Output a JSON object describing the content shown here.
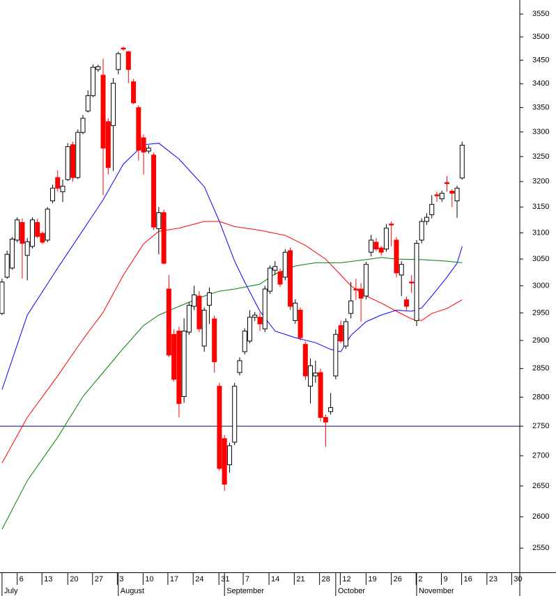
{
  "chart_data": {
    "type": "candlestick",
    "log_scale": true,
    "ylim": [
      2512,
      3581
    ],
    "yticks": [
      2550,
      2600,
      2650,
      2700,
      2750,
      2800,
      2850,
      2900,
      2950,
      3000,
      3050,
      3100,
      3150,
      3200,
      3250,
      3300,
      3350,
      3400,
      3450,
      3500,
      3550
    ],
    "xlim": [
      -0.4,
      102.4
    ],
    "xticks": [
      {
        "value": 3.0,
        "label": "6"
      },
      {
        "value": 7.9,
        "label": "13"
      },
      {
        "value": 13.0,
        "label": "20"
      },
      {
        "value": 17.9,
        "label": "27"
      },
      {
        "value": 22.8,
        "label": "3"
      },
      {
        "value": 27.9,
        "label": "10"
      },
      {
        "value": 32.8,
        "label": "17"
      },
      {
        "value": 37.8,
        "label": "24"
      },
      {
        "value": 42.9,
        "label": "31"
      },
      {
        "value": 47.7,
        "label": "7"
      },
      {
        "value": 52.8,
        "label": "14"
      },
      {
        "value": 57.8,
        "label": "21"
      },
      {
        "value": 62.8,
        "label": "28"
      },
      {
        "value": 66.9,
        "label": "12"
      },
      {
        "value": 72.0,
        "label": "19"
      },
      {
        "value": 77.0,
        "label": "26"
      },
      {
        "value": 81.9,
        "label": "2"
      },
      {
        "value": 86.9,
        "label": "9"
      },
      {
        "value": 90.9,
        "label": "16"
      },
      {
        "value": 95.9,
        "label": "23"
      },
      {
        "value": 100.8,
        "label": "30"
      }
    ],
    "months": [
      {
        "value": 0,
        "label": "July"
      },
      {
        "value": 23,
        "label": "August"
      },
      {
        "value": 44,
        "label": "September"
      },
      {
        "value": 66,
        "label": "October"
      },
      {
        "value": 82,
        "label": "November"
      }
    ],
    "up_color": "#ffffff",
    "down_color": "#ff0000",
    "open": [
      2949,
      3016,
      3033,
      3086,
      3120,
      3057,
      3074,
      3120,
      3099,
      3086,
      3162,
      3208,
      3180,
      3204,
      3274,
      3208,
      3299,
      3343,
      3375,
      3430,
      3418,
      3321,
      3313,
      3430,
      3476,
      3468,
      3404,
      3350,
      3288,
      3261,
      3253,
      3108,
      3139,
      2994,
      2911,
      2917,
      2801,
      2915,
      2962,
      2981,
      2890,
      2964,
      2939,
      2819,
      2729,
      2685,
      2723,
      2843,
      2880,
      2899,
      2942,
      2942,
      2921,
      2990,
      3029,
      3026,
      3016,
      3066,
      2936,
      2955,
      2893,
      2819,
      2837,
      2843,
      2765,
      2775,
      2837,
      2927,
      2890,
      2949,
      2994,
      2994,
      2981,
      3063,
      3082,
      3071,
      3069,
      3117,
      3086,
      3020,
      2974,
      3007,
      2936,
      3086,
      3122,
      3135,
      3174,
      3166,
      3198,
      3181,
      3162,
      3207
    ],
    "high": [
      3013,
      3066,
      3092,
      3130,
      3128,
      3090,
      3130,
      3127,
      3103,
      3150,
      3194,
      3222,
      3204,
      3277,
      3280,
      3305,
      3335,
      3386,
      3441,
      3440,
      3453,
      3328,
      3412,
      3468,
      3479,
      3470,
      3410,
      3355,
      3295,
      3273,
      3258,
      3150,
      3145,
      3020,
      2920,
      2925,
      2940,
      2970,
      3000,
      2990,
      2960,
      2997,
      2945,
      2825,
      2735,
      2722,
      2825,
      2870,
      2922,
      2955,
      2952,
      2950,
      3000,
      3038,
      3046,
      3032,
      3069,
      3072,
      2975,
      2960,
      2898,
      2868,
      2864,
      2850,
      2770,
      2807,
      2920,
      2936,
      2940,
      3007,
      3013,
      3005,
      3045,
      3096,
      3090,
      3075,
      3117,
      3122,
      3092,
      3046,
      2980,
      3020,
      3086,
      3128,
      3138,
      3173,
      3180,
      3182,
      3211,
      3185,
      3192,
      3280
    ],
    "low": [
      2946,
      3013,
      3030,
      3082,
      3013,
      3010,
      3070,
      3090,
      3078,
      3082,
      3157,
      3180,
      3160,
      3201,
      3200,
      3205,
      3295,
      3340,
      3372,
      3425,
      3173,
      3214,
      3221,
      3420,
      3470,
      3401,
      3357,
      3242,
      3214,
      3256,
      3105,
      3059,
      3040,
      2870,
      2827,
      2765,
      2790,
      2910,
      2955,
      2915,
      2880,
      2930,
      2843,
      2675,
      2642,
      2672,
      2718,
      2838,
      2875,
      2895,
      2935,
      2917,
      2915,
      2985,
      3020,
      2998,
      3010,
      2955,
      2930,
      2900,
      2830,
      2789,
      2825,
      2758,
      2715,
      2770,
      2831,
      2895,
      2885,
      2940,
      2974,
      2934,
      2975,
      3055,
      3065,
      3057,
      3064,
      3074,
      3016,
      2981,
      2955,
      2987,
      2926,
      3080,
      3115,
      3128,
      3160,
      3160,
      3180,
      3150,
      3129,
      3204
    ],
    "close": [
      3007,
      3059,
      3088,
      3125,
      3080,
      3083,
      3125,
      3093,
      3082,
      3146,
      3187,
      3187,
      3191,
      3270,
      3208,
      3299,
      3328,
      3375,
      3435,
      3436,
      3267,
      3228,
      3401,
      3464,
      3475,
      3430,
      3360,
      3263,
      3259,
      3267,
      3111,
      3139,
      3042,
      2874,
      2831,
      2789,
      2917,
      2964,
      2983,
      2921,
      2955,
      2987,
      2862,
      2679,
      2653,
      2717,
      2819,
      2864,
      2917,
      2942,
      2946,
      2930,
      2994,
      3033,
      3036,
      3003,
      3063,
      2962,
      2968,
      2905,
      2837,
      2855,
      2842,
      2765,
      2757,
      2782,
      2911,
      2899,
      2934,
      2972,
      2993,
      2977,
      3040,
      3086,
      3069,
      3063,
      3109,
      3116,
      3024,
      3040,
      2962,
      3006,
      3080,
      3122,
      3130,
      3155,
      3172,
      3177,
      3197,
      3177,
      3187,
      3273
    ],
    "lines": [
      {
        "color": "#0000ff",
        "x": [
          0,
          5,
          11,
          16,
          20,
          24,
          28,
          31,
          35,
          40,
          43,
          46,
          48,
          51,
          54,
          58,
          62,
          65,
          67,
          69,
          72,
          75,
          78,
          81,
          83,
          85,
          88,
          90,
          91
        ],
        "values": [
          2813,
          2946,
          3033,
          3105,
          3164,
          3235,
          3274,
          3277,
          3245,
          3190,
          3122,
          3046,
          3007,
          2953,
          2917,
          2905,
          2896,
          2884,
          2880,
          2909,
          2934,
          2946,
          2955,
          2953,
          2959,
          2981,
          3016,
          3042,
          3074
        ]
      },
      {
        "color": "#ff0000",
        "x": [
          0,
          5,
          11,
          16,
          20,
          24,
          28,
          31,
          35,
          40,
          43,
          46,
          51,
          56,
          60,
          64,
          67,
          69,
          72,
          75,
          78,
          81,
          83,
          85,
          88,
          91
        ],
        "values": [
          2688,
          2765,
          2837,
          2902,
          2951,
          3020,
          3079,
          3103,
          3109,
          3122,
          3122,
          3112,
          3105,
          3095,
          3076,
          3050,
          3020,
          3000,
          2981,
          2968,
          2953,
          2939,
          2936,
          2949,
          2958,
          2974
        ]
      },
      {
        "color": "#008000",
        "x": [
          0,
          5,
          11,
          16,
          20,
          24,
          28,
          31,
          35,
          40,
          43,
          46,
          51,
          54,
          58,
          62,
          67,
          72,
          75,
          78,
          83,
          88,
          91
        ],
        "values": [
          2580,
          2659,
          2731,
          2801,
          2843,
          2886,
          2927,
          2946,
          2962,
          2981,
          2990,
          2994,
          3003,
          3022,
          3037,
          3043,
          3043,
          3049,
          3053,
          3050,
          3049,
          3046,
          3043
        ]
      }
    ],
    "hline": {
      "value": 2750,
      "color": "#000080"
    }
  }
}
